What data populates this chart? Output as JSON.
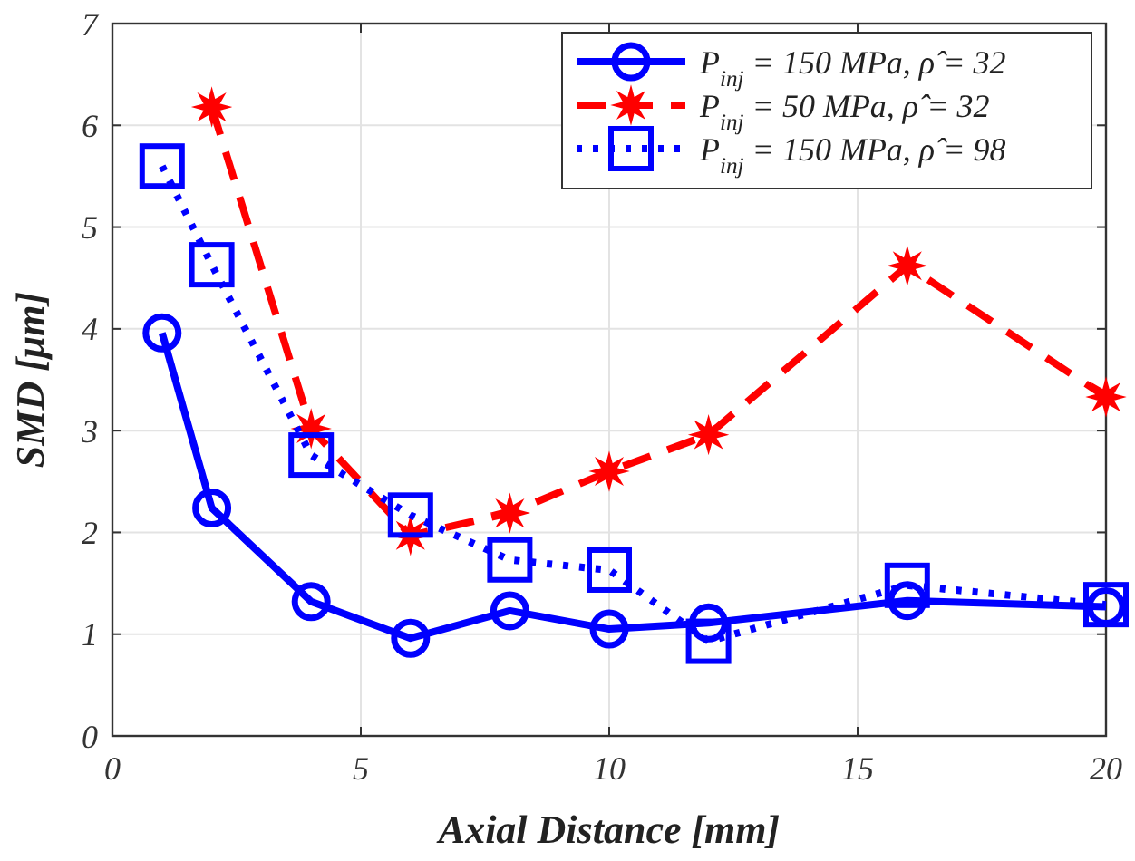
{
  "chart_data": {
    "type": "line",
    "xlabel": "Axial Distance [mm]",
    "ylabel": "SMD [μm]",
    "x": [
      1,
      2,
      4,
      6,
      8,
      10,
      12,
      16,
      20
    ],
    "series": [
      {
        "name": "P$_{inj}$ = 150 MPa, ρ̂ = 32",
        "color": "#0000ff",
        "marker": "circle",
        "line_style": "solid",
        "values": [
          3.96,
          2.24,
          1.32,
          0.96,
          1.23,
          1.05,
          1.11,
          1.33,
          1.27
        ]
      },
      {
        "name": "P$_{inj}$ = 50 MPa, ρ̂ = 32",
        "color": "#ff0000",
        "marker": "star",
        "line_style": "dashed",
        "x": [
          2,
          4,
          6,
          8,
          10,
          12,
          16,
          20
        ],
        "values": [
          6.18,
          3.02,
          1.97,
          2.19,
          2.6,
          2.96,
          4.62,
          3.33
        ]
      },
      {
        "name": "P$_{inj}$ = 150 MPa, ρ̂ = 98",
        "color": "#0000ff",
        "marker": "square",
        "line_style": "dotted",
        "values": [
          5.6,
          4.63,
          2.76,
          2.17,
          1.73,
          1.63,
          0.93,
          1.48,
          1.29
        ]
      }
    ],
    "xlim": [
      0,
      20
    ],
    "xticks": [
      0,
      5,
      10,
      15,
      20
    ],
    "ylim": [
      0,
      7
    ],
    "yticks": [
      0,
      1,
      2,
      3,
      4,
      5,
      6,
      7
    ],
    "grid": true,
    "legend": "top right"
  }
}
